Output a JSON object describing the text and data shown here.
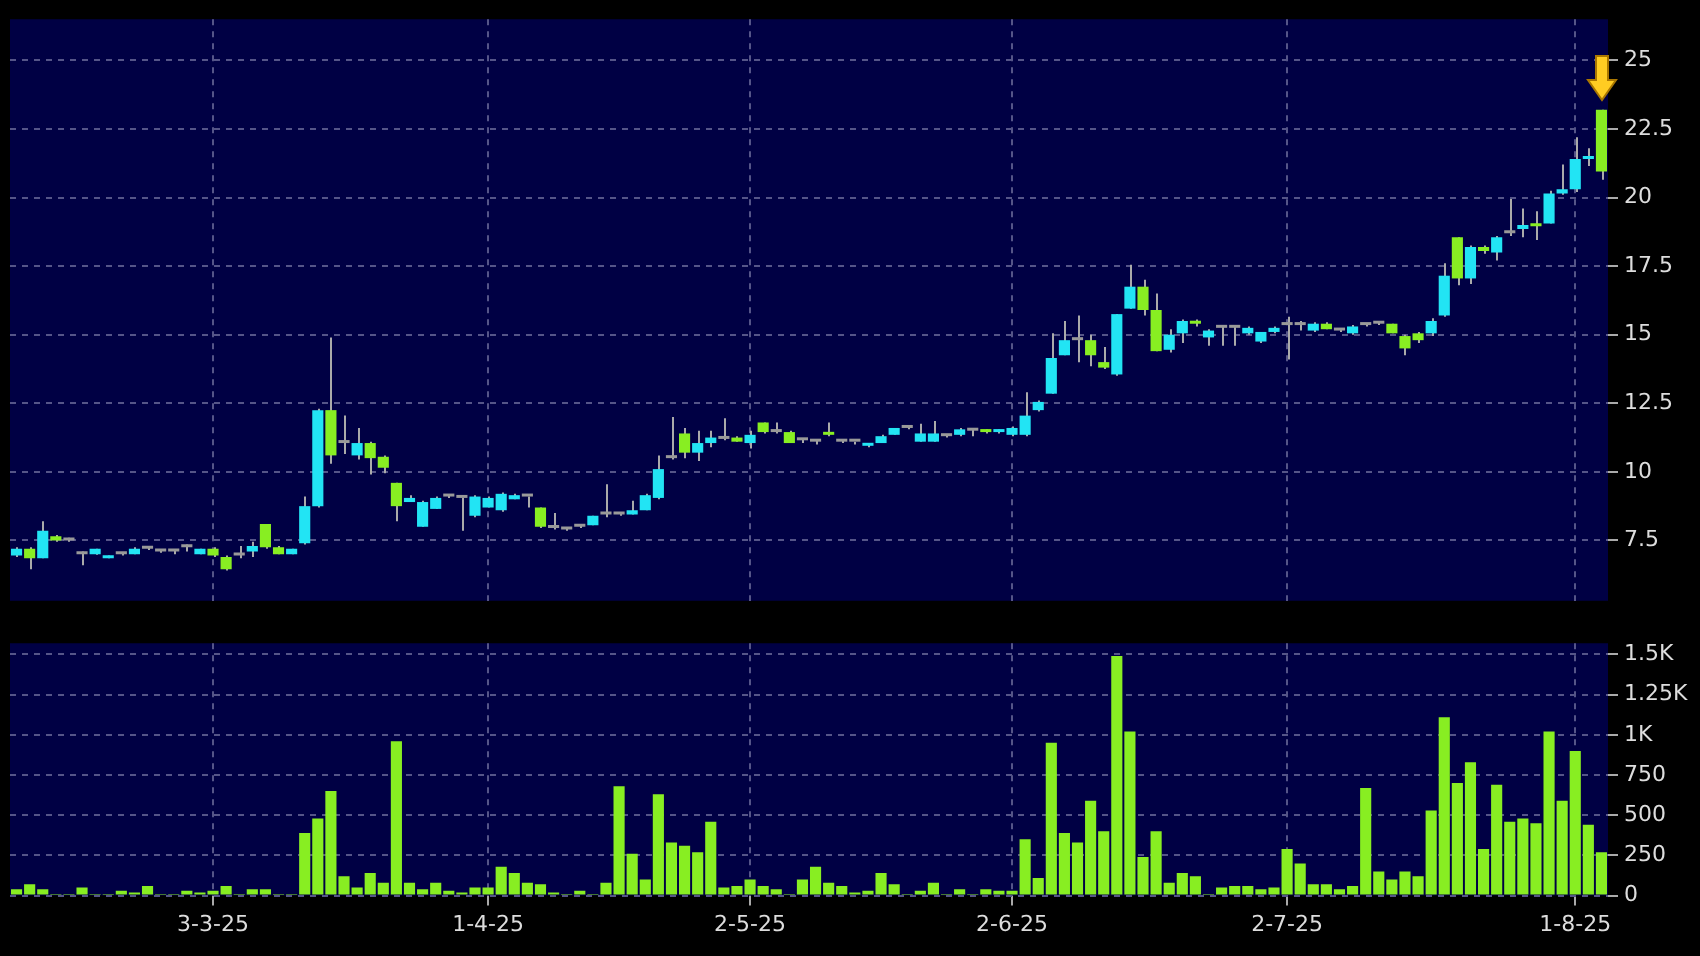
{
  "chart_data": [
    {
      "type": "candlestick",
      "categories": [
        null,
        null,
        null,
        null,
        null,
        null,
        null,
        null,
        null,
        null,
        null,
        null,
        null,
        null,
        null,
        null,
        null,
        null,
        null,
        null,
        null,
        null,
        null,
        null,
        null,
        null,
        null,
        null,
        null,
        null,
        null,
        null,
        null,
        null,
        null,
        null,
        null,
        null,
        null,
        null,
        null,
        null,
        null,
        null,
        null,
        null,
        null,
        null,
        null,
        null,
        null,
        null,
        null,
        null,
        null,
        null,
        null,
        null,
        null,
        null,
        null,
        null,
        null,
        null,
        null,
        null,
        null,
        null,
        null,
        null,
        null,
        null,
        null,
        null,
        null,
        null,
        null,
        null,
        null,
        null,
        null,
        null,
        null,
        null,
        null,
        null,
        null,
        null,
        null,
        null,
        null,
        null,
        null,
        null,
        null,
        null,
        null,
        null,
        null,
        null,
        null,
        null,
        null,
        null,
        null,
        null,
        null,
        null,
        null,
        null,
        null,
        null,
        null,
        null,
        null,
        null,
        null,
        null,
        null,
        null,
        null,
        null
      ],
      "ohlc": [
        [
          6.95,
          7.25,
          6.9,
          7.2
        ],
        [
          7.2,
          7.25,
          6.45,
          6.85
        ],
        [
          6.85,
          8.2,
          6.85,
          7.85
        ],
        [
          7.65,
          7.7,
          7.45,
          7.5
        ],
        [
          7.5,
          7.6,
          7.45,
          7.5
        ],
        [
          7.0,
          7.1,
          6.6,
          7.0
        ],
        [
          7.0,
          7.2,
          6.98,
          7.2
        ],
        [
          6.85,
          6.95,
          6.85,
          6.95
        ],
        [
          7.0,
          7.05,
          6.95,
          7.0
        ],
        [
          7.0,
          7.25,
          7.0,
          7.2
        ],
        [
          7.2,
          7.25,
          7.15,
          7.2
        ],
        [
          7.1,
          7.15,
          7.05,
          7.1
        ],
        [
          7.1,
          7.15,
          7.0,
          7.1
        ],
        [
          7.25,
          7.35,
          7.1,
          7.25
        ],
        [
          7.0,
          7.2,
          7.0,
          7.2
        ],
        [
          7.2,
          7.25,
          6.9,
          6.95
        ],
        [
          6.9,
          6.95,
          6.4,
          6.45
        ],
        [
          6.95,
          7.3,
          6.85,
          6.95
        ],
        [
          7.1,
          7.45,
          6.9,
          7.3
        ],
        [
          8.1,
          8.1,
          7.2,
          7.25
        ],
        [
          7.25,
          7.3,
          7.0,
          7.0
        ],
        [
          7.0,
          7.2,
          7.0,
          7.2
        ],
        [
          7.4,
          9.1,
          7.35,
          8.75
        ],
        [
          8.75,
          12.3,
          8.7,
          12.25
        ],
        [
          12.25,
          14.9,
          10.3,
          10.6
        ],
        [
          11.05,
          12.05,
          10.65,
          11.05
        ],
        [
          10.6,
          11.6,
          10.45,
          11.05
        ],
        [
          11.05,
          11.1,
          9.9,
          10.5
        ],
        [
          10.55,
          10.6,
          9.95,
          10.15
        ],
        [
          9.6,
          9.6,
          8.2,
          8.75
        ],
        [
          8.9,
          9.15,
          8.9,
          9.05
        ],
        [
          8.0,
          8.95,
          8.0,
          8.9
        ],
        [
          8.65,
          9.1,
          8.65,
          9.05
        ],
        [
          9.1,
          9.15,
          9.05,
          9.1
        ],
        [
          9.05,
          9.05,
          7.85,
          9.05
        ],
        [
          8.4,
          9.15,
          8.35,
          9.1
        ],
        [
          8.7,
          9.1,
          8.7,
          9.05
        ],
        [
          8.6,
          9.25,
          8.55,
          9.2
        ],
        [
          9.0,
          9.2,
          9.0,
          9.15
        ],
        [
          9.1,
          9.1,
          8.7,
          9.1
        ],
        [
          8.7,
          8.7,
          7.95,
          8.0
        ],
        [
          7.95,
          8.5,
          7.9,
          7.95
        ],
        [
          7.9,
          7.95,
          7.85,
          7.9
        ],
        [
          8.0,
          8.05,
          7.95,
          8.0
        ],
        [
          8.05,
          8.4,
          8.05,
          8.4
        ],
        [
          8.45,
          9.55,
          8.35,
          8.45
        ],
        [
          8.45,
          8.5,
          8.4,
          8.45
        ],
        [
          8.45,
          8.95,
          8.45,
          8.6
        ],
        [
          8.6,
          9.2,
          8.6,
          9.15
        ],
        [
          9.05,
          10.6,
          9.0,
          10.1
        ],
        [
          10.5,
          12.0,
          10.45,
          10.5
        ],
        [
          11.4,
          11.6,
          10.5,
          10.7
        ],
        [
          10.7,
          11.5,
          10.4,
          11.05
        ],
        [
          11.05,
          11.5,
          10.9,
          11.25
        ],
        [
          11.2,
          11.95,
          11.15,
          11.2
        ],
        [
          11.25,
          11.3,
          11.1,
          11.1
        ],
        [
          11.05,
          11.5,
          10.85,
          11.35
        ],
        [
          11.8,
          11.8,
          11.4,
          11.45
        ],
        [
          11.45,
          11.8,
          11.4,
          11.45
        ],
        [
          11.45,
          11.5,
          11.05,
          11.05
        ],
        [
          11.15,
          11.2,
          11.05,
          11.15
        ],
        [
          11.1,
          11.15,
          11.0,
          11.1
        ],
        [
          11.45,
          11.8,
          11.3,
          11.35
        ],
        [
          11.1,
          11.15,
          11.05,
          11.1
        ],
        [
          11.1,
          11.1,
          11.0,
          11.1
        ],
        [
          10.95,
          11.05,
          10.9,
          11.05
        ],
        [
          11.05,
          11.35,
          11.05,
          11.3
        ],
        [
          11.35,
          11.6,
          11.35,
          11.6
        ],
        [
          11.6,
          11.65,
          11.55,
          11.6
        ],
        [
          11.1,
          11.75,
          11.1,
          11.4
        ],
        [
          11.1,
          11.85,
          11.1,
          11.4
        ],
        [
          11.3,
          11.35,
          11.25,
          11.3
        ],
        [
          11.35,
          11.6,
          11.3,
          11.55
        ],
        [
          11.5,
          11.55,
          11.3,
          11.5
        ],
        [
          11.5,
          11.55,
          11.4,
          11.45
        ],
        [
          11.45,
          11.55,
          11.4,
          11.5
        ],
        [
          11.35,
          11.65,
          11.3,
          11.6
        ],
        [
          11.35,
          12.9,
          11.3,
          12.05
        ],
        [
          12.25,
          12.6,
          12.2,
          12.55
        ],
        [
          12.85,
          15.05,
          12.85,
          14.15
        ],
        [
          14.25,
          15.5,
          14.25,
          14.8
        ],
        [
          14.8,
          15.7,
          14.0,
          14.8
        ],
        [
          14.8,
          15.0,
          13.85,
          14.25
        ],
        [
          14.0,
          14.55,
          13.75,
          13.8
        ],
        [
          13.55,
          15.75,
          13.5,
          15.75
        ],
        [
          15.95,
          17.55,
          15.95,
          16.75
        ],
        [
          16.75,
          17.0,
          15.7,
          15.9
        ],
        [
          15.9,
          16.5,
          14.4,
          14.4
        ],
        [
          14.45,
          15.2,
          14.35,
          15.0
        ],
        [
          15.05,
          15.55,
          14.7,
          15.5
        ],
        [
          15.5,
          15.55,
          15.3,
          15.4
        ],
        [
          14.9,
          15.2,
          14.6,
          15.15
        ],
        [
          15.25,
          15.3,
          14.6,
          15.25
        ],
        [
          15.25,
          15.3,
          14.6,
          15.25
        ],
        [
          15.05,
          15.3,
          15.0,
          15.25
        ],
        [
          14.75,
          15.1,
          14.7,
          15.1
        ],
        [
          15.1,
          15.3,
          15.05,
          15.25
        ],
        [
          15.35,
          15.65,
          14.1,
          15.35
        ],
        [
          15.35,
          15.5,
          15.15,
          15.35
        ],
        [
          15.15,
          15.45,
          15.1,
          15.4
        ],
        [
          15.4,
          15.45,
          15.2,
          15.2
        ],
        [
          15.15,
          15.2,
          15.1,
          15.15
        ],
        [
          15.05,
          15.35,
          15.0,
          15.3
        ],
        [
          15.35,
          15.4,
          15.3,
          15.35
        ],
        [
          15.4,
          15.45,
          15.35,
          15.4
        ],
        [
          15.4,
          15.4,
          15.05,
          15.05
        ],
        [
          14.95,
          15.0,
          14.25,
          14.5
        ],
        [
          15.05,
          15.1,
          14.7,
          14.8
        ],
        [
          15.05,
          15.6,
          14.95,
          15.5
        ],
        [
          15.7,
          17.6,
          15.65,
          17.15
        ],
        [
          18.55,
          18.55,
          16.8,
          17.05
        ],
        [
          17.05,
          18.25,
          16.85,
          18.2
        ],
        [
          18.2,
          18.25,
          17.95,
          18.05
        ],
        [
          18.0,
          18.6,
          17.7,
          18.55
        ],
        [
          18.7,
          19.95,
          18.6,
          18.7
        ],
        [
          18.85,
          19.6,
          18.55,
          19.0
        ],
        [
          19.05,
          19.5,
          18.45,
          18.95
        ],
        [
          19.05,
          20.25,
          19.05,
          20.15
        ],
        [
          20.15,
          21.2,
          20.1,
          20.3
        ],
        [
          20.3,
          22.2,
          20.2,
          21.4
        ],
        [
          21.4,
          21.8,
          21.15,
          21.5
        ],
        [
          23.2,
          23.2,
          20.65,
          20.95
        ]
      ],
      "colors": [
        "#22e4f4",
        "#88ee22",
        "#22e4f4",
        "#88ee22",
        "#999999",
        "#999999",
        "#22e4f4",
        "#22e4f4",
        "#999999",
        "#22e4f4",
        "#999999",
        "#999999",
        "#999999",
        "#999999",
        "#22e4f4",
        "#88ee22",
        "#88ee22",
        "#999999",
        "#22e4f4",
        "#88ee22",
        "#88ee22",
        "#22e4f4",
        "#22e4f4",
        "#22e4f4",
        "#88ee22",
        "#999999",
        "#22e4f4",
        "#88ee22",
        "#88ee22",
        "#88ee22",
        "#22e4f4",
        "#22e4f4",
        "#22e4f4",
        "#999999",
        "#999999",
        "#22e4f4",
        "#22e4f4",
        "#22e4f4",
        "#22e4f4",
        "#999999",
        "#88ee22",
        "#999999",
        "#999999",
        "#999999",
        "#22e4f4",
        "#999999",
        "#999999",
        "#22e4f4",
        "#22e4f4",
        "#22e4f4",
        "#999999",
        "#88ee22",
        "#22e4f4",
        "#22e4f4",
        "#999999",
        "#88ee22",
        "#22e4f4",
        "#88ee22",
        "#999999",
        "#88ee22",
        "#999999",
        "#999999",
        "#88ee22",
        "#999999",
        "#999999",
        "#22e4f4",
        "#22e4f4",
        "#22e4f4",
        "#999999",
        "#22e4f4",
        "#22e4f4",
        "#999999",
        "#22e4f4",
        "#999999",
        "#88ee22",
        "#22e4f4",
        "#22e4f4",
        "#22e4f4",
        "#22e4f4",
        "#22e4f4",
        "#22e4f4",
        "#999999",
        "#88ee22",
        "#88ee22",
        "#22e4f4",
        "#22e4f4",
        "#88ee22",
        "#88ee22",
        "#22e4f4",
        "#22e4f4",
        "#88ee22",
        "#22e4f4",
        "#999999",
        "#999999",
        "#22e4f4",
        "#22e4f4",
        "#22e4f4",
        "#999999",
        "#999999",
        "#22e4f4",
        "#88ee22",
        "#999999",
        "#22e4f4",
        "#999999",
        "#999999",
        "#88ee22",
        "#88ee22",
        "#88ee22",
        "#22e4f4",
        "#22e4f4",
        "#88ee22",
        "#22e4f4",
        "#88ee22",
        "#22e4f4",
        "#999999",
        "#22e4f4",
        "#88ee22",
        "#22e4f4",
        "#22e4f4",
        "#22e4f4",
        "#22e4f4",
        "#88ee22"
      ],
      "ylim": [
        5.3,
        26.5
      ],
      "yticks": [
        7.5,
        10,
        12.5,
        15,
        17.5,
        20,
        22.5,
        25
      ],
      "grid": true,
      "tick_labels": "y"
    },
    {
      "type": "bar",
      "categories": [
        null,
        null,
        null,
        null,
        null,
        null,
        null,
        null,
        null,
        null,
        null,
        null,
        null,
        null,
        null,
        "3-3-25",
        null,
        null,
        null,
        null,
        null,
        null,
        null,
        null,
        null,
        null,
        null,
        null,
        null,
        null,
        null,
        null,
        null,
        null,
        null,
        null,
        "1-4-25",
        null,
        null,
        null,
        null,
        null,
        null,
        null,
        null,
        null,
        null,
        null,
        null,
        null,
        null,
        null,
        null,
        null,
        null,
        null,
        "2-5-25",
        null,
        null,
        null,
        null,
        null,
        null,
        null,
        null,
        null,
        null,
        null,
        null,
        null,
        null,
        null,
        null,
        null,
        null,
        null,
        "2-6-25",
        null,
        null,
        null,
        null,
        null,
        null,
        null,
        null,
        null,
        null,
        null,
        null,
        null,
        null,
        null,
        null,
        null,
        null,
        null,
        null,
        "2-7-25",
        null,
        null,
        null,
        null,
        null,
        null,
        null,
        null,
        null,
        null,
        null,
        null,
        null,
        null,
        null,
        null,
        null,
        null,
        null,
        null,
        null,
        "1-8-25",
        null,
        null
      ],
      "values": [
        40,
        70,
        40,
        10,
        10,
        50,
        10,
        10,
        30,
        20,
        60,
        10,
        10,
        30,
        20,
        30,
        60,
        10,
        40,
        40,
        10,
        10,
        390,
        480,
        650,
        120,
        50,
        140,
        80,
        960,
        80,
        40,
        80,
        30,
        20,
        50,
        50,
        180,
        140,
        80,
        70,
        20,
        10,
        30,
        10,
        80,
        680,
        260,
        100,
        630,
        330,
        310,
        270,
        460,
        50,
        60,
        100,
        60,
        40,
        10,
        100,
        180,
        80,
        60,
        20,
        30,
        140,
        70,
        10,
        30,
        80,
        10,
        40,
        10,
        40,
        30,
        30,
        350,
        110,
        950,
        390,
        330,
        590,
        400,
        1490,
        1020,
        240,
        400,
        80,
        140,
        120,
        10,
        50,
        60,
        60,
        40,
        50,
        290,
        200,
        70,
        70,
        40,
        60,
        670,
        150,
        100,
        150,
        120,
        530,
        1110,
        700,
        830,
        290,
        690,
        460,
        480,
        450,
        1020,
        590,
        900,
        440,
        270
      ],
      "color": "#88ee22",
      "ylim": [
        0,
        1570
      ],
      "yticks": [
        0,
        250,
        500,
        750,
        {
          "value": 1000,
          "label": "1K"
        },
        {
          "value": 1250,
          "label": "1.25K"
        },
        {
          "value": 1500,
          "label": "1.5K"
        }
      ],
      "grid": true
    }
  ]
}
